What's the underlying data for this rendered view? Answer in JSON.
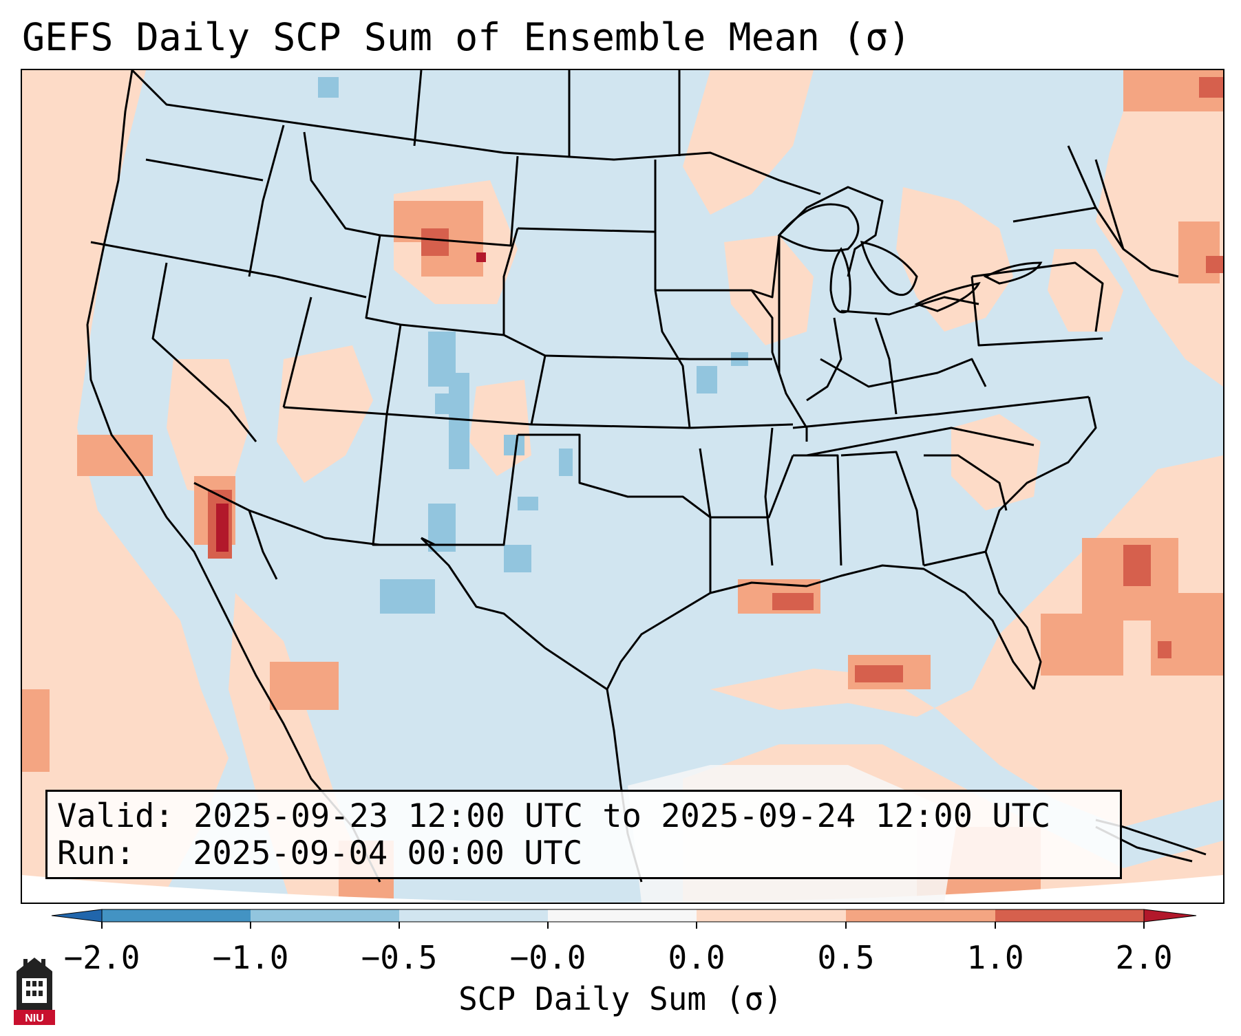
{
  "title": "GEFS Daily SCP Sum of Ensemble Mean (σ)",
  "info_box": {
    "valid_label": "Valid:",
    "valid_value": "2025-09-23 12:00 UTC to 2025-09-24 12:00 UTC",
    "run_label": "Run:",
    "run_value": "2025-09-04 00:00 UTC"
  },
  "colorbar": {
    "label": "SCP Daily Sum (σ)",
    "ticks": [
      "−2.0",
      "−1.0",
      "−0.5",
      "−0.0",
      "0.0",
      "0.5",
      "1.0",
      "2.0"
    ],
    "colors": {
      "below_min": "#2166ac",
      "neg_2_to_neg_1": "#4393c3",
      "neg_1_to_neg_05": "#92c5de",
      "neg_05_to_0": "#d1e5f0",
      "zero_band": "#f7f7f7",
      "pos_0_to_05": "#fddbc7",
      "pos_05_to_1": "#f4a582",
      "pos_1_to_2": "#d6604d",
      "above_max": "#b2182b"
    }
  },
  "map": {
    "region": "Contiguous United States",
    "field": "SCP Daily Sum standardized anomaly"
  },
  "logo": {
    "text": "NIU",
    "name": "Northern Illinois University"
  }
}
